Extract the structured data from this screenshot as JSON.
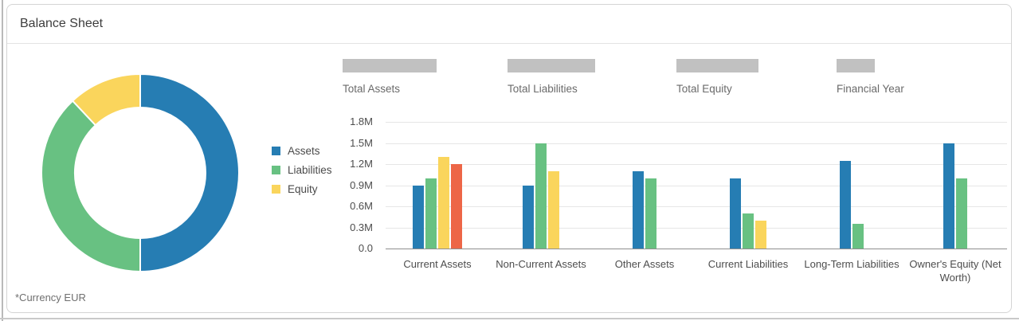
{
  "header": {
    "title": "Balance Sheet"
  },
  "footnote": "*Currency EUR",
  "kpis": [
    {
      "label": "Total Assets",
      "placeholder_width": 118
    },
    {
      "label": "Total Liabilities",
      "placeholder_width": 110
    },
    {
      "label": "Total Equity",
      "placeholder_width": 103
    },
    {
      "label": "Financial Year",
      "placeholder_width": 48
    }
  ],
  "legend": {
    "position": "between-charts",
    "items": [
      {
        "label": "Assets",
        "color": "#267db3"
      },
      {
        "label": "Liabilities",
        "color": "#68c182"
      },
      {
        "label": "Equity",
        "color": "#fad55c"
      }
    ]
  },
  "colors": {
    "assets_blue": "#267db3",
    "liabilities_green": "#68c182",
    "equity_yellow": "#fad55c",
    "extra_red": "#ed6647",
    "placeholder_gray": "#c1c1c1"
  },
  "chart_data": [
    {
      "type": "pie",
      "subtype": "donut",
      "legend_position": "right",
      "slices": [
        {
          "label": "Assets",
          "percent": 50,
          "color": "#267db3"
        },
        {
          "label": "Liabilities",
          "percent": 38,
          "color": "#68c182"
        },
        {
          "label": "Equity",
          "percent": 12,
          "color": "#fad55c"
        }
      ]
    },
    {
      "type": "bar",
      "title": "",
      "xlabel": "",
      "ylabel": "",
      "unit": "M",
      "ylim": [
        0,
        1.8
      ],
      "grid": true,
      "yticks": [
        {
          "v": 1.8,
          "label": "1.8M"
        },
        {
          "v": 1.5,
          "label": "1.5M"
        },
        {
          "v": 1.2,
          "label": "1.2M"
        },
        {
          "v": 0.9,
          "label": "0.9M"
        },
        {
          "v": 0.6,
          "label": "0.6M"
        },
        {
          "v": 0.3,
          "label": "0.3M"
        },
        {
          "v": 0,
          "label": "0.0"
        }
      ],
      "categories": [
        "Current Assets",
        "Non-Current Assets",
        "Other Assets",
        "Current Liabilities",
        "Long-Term Liabilities",
        "Owner's Equity (Net Worth)"
      ],
      "series": [
        {
          "name": "Assets",
          "color": "#267db3",
          "values": [
            0.9,
            0.9,
            1.1,
            1.0,
            1.25,
            1.5
          ]
        },
        {
          "name": "Liabilities",
          "color": "#68c182",
          "values": [
            1.0,
            1.5,
            1.0,
            0.5,
            0.35,
            1.0
          ]
        },
        {
          "name": "Equity",
          "color": "#fad55c",
          "values": [
            1.3,
            1.1,
            null,
            0.4,
            null,
            null
          ]
        },
        {
          "name": "",
          "color": "#ed6647",
          "values": [
            1.2,
            null,
            null,
            null,
            null,
            null
          ]
        }
      ]
    }
  ]
}
